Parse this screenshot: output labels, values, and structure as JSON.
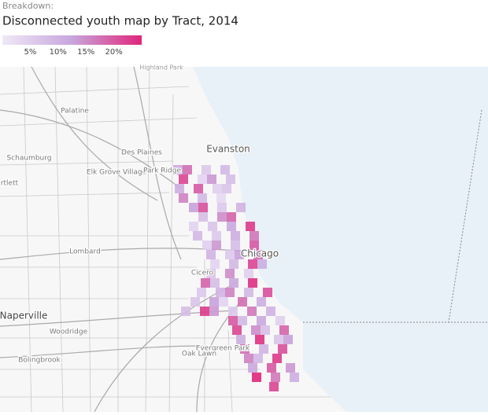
{
  "header": {
    "kicker": "Breakdown:",
    "title": "Disconnected youth map by Tract, 2014"
  },
  "legend": {
    "range": [
      0,
      25
    ],
    "ticks": [
      {
        "value": 5,
        "label": "5%"
      },
      {
        "value": 10,
        "label": "10%"
      },
      {
        "value": 15,
        "label": "15%"
      },
      {
        "value": 20,
        "label": "20%"
      }
    ],
    "colors": [
      "#efe8f7",
      "#c7a6dd",
      "#e0267a"
    ]
  },
  "map": {
    "places": [
      "Highland Park",
      "Palatine",
      "Des Plaines",
      "Schaumburg",
      "Elk Grove Village",
      "Park Ridge",
      "Evanston",
      "rtlett",
      "Lombard",
      "Cicero",
      "Chicago",
      "Naperville",
      "Woodridge",
      "Evergreen Park",
      "Oak Lawn",
      "Bolingbrook"
    ],
    "tracts": [
      12,
      18,
      6,
      9,
      22,
      4,
      14,
      8,
      11,
      20,
      5,
      7,
      16,
      9,
      3,
      13,
      21,
      6,
      10,
      8,
      15,
      19,
      4,
      7,
      12,
      23,
      9,
      6,
      11,
      17,
      5,
      14,
      8,
      20,
      10,
      6,
      13,
      18,
      4,
      9,
      22,
      11,
      7,
      15,
      5,
      19,
      8,
      12,
      24,
      6,
      10,
      16,
      9,
      21,
      7,
      13,
      4,
      18,
      11,
      8,
      23,
      14,
      6,
      17,
      10,
      20,
      9,
      12,
      5,
      22,
      15,
      8,
      19,
      11,
      24,
      7,
      13,
      18,
      10,
      21,
      16,
      9,
      23,
      12,
      20,
      14,
      25,
      17,
      11,
      22
    ]
  }
}
